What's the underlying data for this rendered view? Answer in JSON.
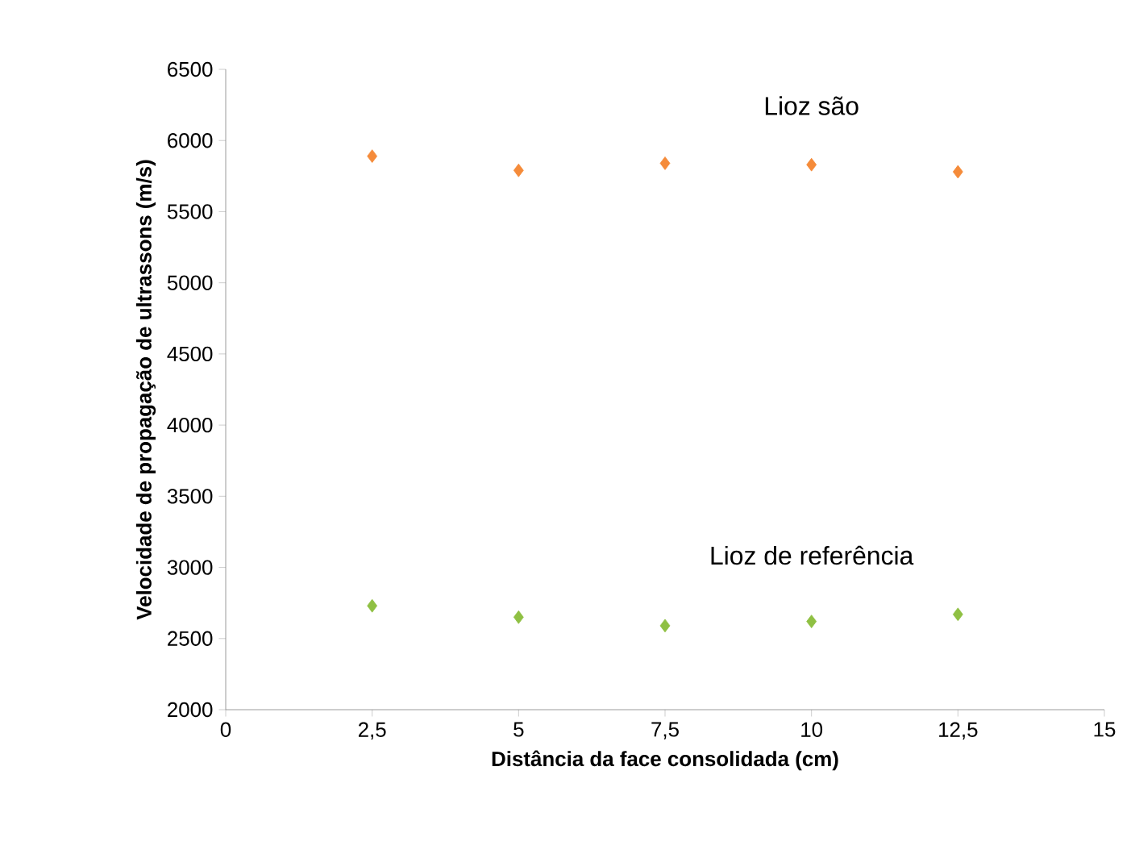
{
  "chart_data": {
    "type": "scatter",
    "xlabel": "Distância da face consolidada (cm)",
    "ylabel": "Velocidade de propagação de ultrassons (m/s)",
    "xlim": [
      0,
      15
    ],
    "ylim": [
      2000,
      6500
    ],
    "xticks": [
      0,
      {
        "value": 2.5,
        "label": "2,5"
      },
      5,
      {
        "value": 7.5,
        "label": "7,5"
      },
      10,
      {
        "value": 12.5,
        "label": "12,5"
      },
      15
    ],
    "yticks": [
      2000,
      2500,
      3000,
      3500,
      4000,
      4500,
      5000,
      5500,
      6000,
      6500
    ],
    "marker": "diamond",
    "grid": false,
    "series": [
      {
        "name": "Lioz são",
        "color": "#f58b3a",
        "x": [
          2.5,
          5,
          7.5,
          10,
          12.5
        ],
        "values": [
          5890,
          5790,
          5840,
          5830,
          5780
        ]
      },
      {
        "name": "Lioz de referência",
        "color": "#8fc043",
        "x": [
          2.5,
          5,
          7.5,
          10,
          12.5
        ],
        "values": [
          2730,
          2650,
          2590,
          2620,
          2670
        ]
      }
    ]
  }
}
